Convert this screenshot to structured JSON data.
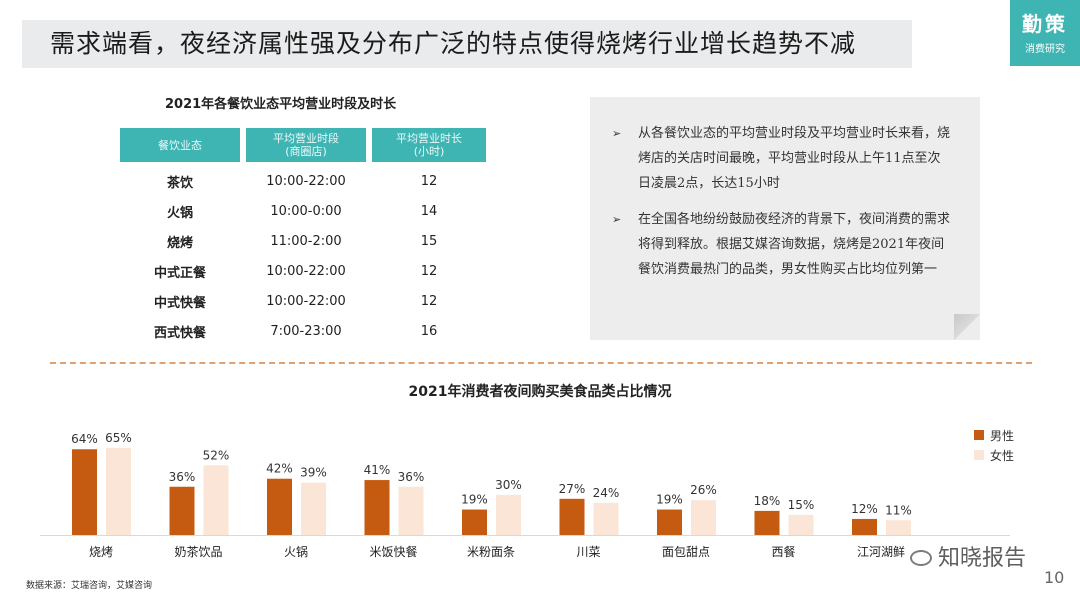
{
  "title": "需求端看，夜经济属性强及分布广泛的特点使得烧烤行业增长趋势不减",
  "logo": {
    "main": "勤策",
    "sub": "消费研究"
  },
  "table": {
    "title": "2021年各餐饮业态平均营业时段及时长",
    "headers": [
      "餐饮业态",
      "平均营业时段\n(商圈店)",
      "平均营业时长\n(小时)"
    ],
    "rows": [
      {
        "name": "茶饮",
        "period": "10:00-22:00",
        "hours": "12"
      },
      {
        "name": "火锅",
        "period": "10:00-0:00",
        "hours": "14"
      },
      {
        "name": "烧烤",
        "period": "11:00-2:00",
        "hours": "15"
      },
      {
        "name": "中式正餐",
        "period": "10:00-22:00",
        "hours": "12"
      },
      {
        "name": "中式快餐",
        "period": "10:00-22:00",
        "hours": "12"
      },
      {
        "name": "西式快餐",
        "period": "7:00-23:00",
        "hours": "16"
      }
    ]
  },
  "notes": [
    {
      "arrow": "➢",
      "text": "从各餐饮业态的平均营业时段及平均营业时长来看，烧烤店的关店时间最晚，平均营业时段从上午11点至次日凌晨2点，长达15小时"
    },
    {
      "arrow": "➢",
      "text": "在全国各地纷纷鼓励夜经济的背景下，夜间消费的需求将得到释放。根据艾媒咨询数据，烧烤是2021年夜间餐饮消费最热门的品类，男女性购买占比均位列第一"
    }
  ],
  "colors": {
    "male": "#c55a11",
    "female": "#fbe5d6",
    "accent": "#3fb5b3"
  },
  "chart_data": {
    "type": "bar",
    "title": "2021年消费者夜间购买美食品类占比情况",
    "categories": [
      "烧烤",
      "奶茶饮品",
      "火锅",
      "米饭快餐",
      "米粉面条",
      "川菜",
      "面包甜点",
      "西餐",
      "江河湖鲜"
    ],
    "series": [
      {
        "name": "男性",
        "values": [
          64,
          36,
          42,
          41,
          19,
          27,
          19,
          18,
          12
        ]
      },
      {
        "name": "女性",
        "values": [
          65,
          52,
          39,
          36,
          30,
          24,
          26,
          15,
          11
        ]
      }
    ],
    "unit": "%",
    "legend_position": "right"
  },
  "source": "数据来源：艾瑞咨询，艾媒咨询",
  "watermark": "知晓报告",
  "page_number": "10"
}
